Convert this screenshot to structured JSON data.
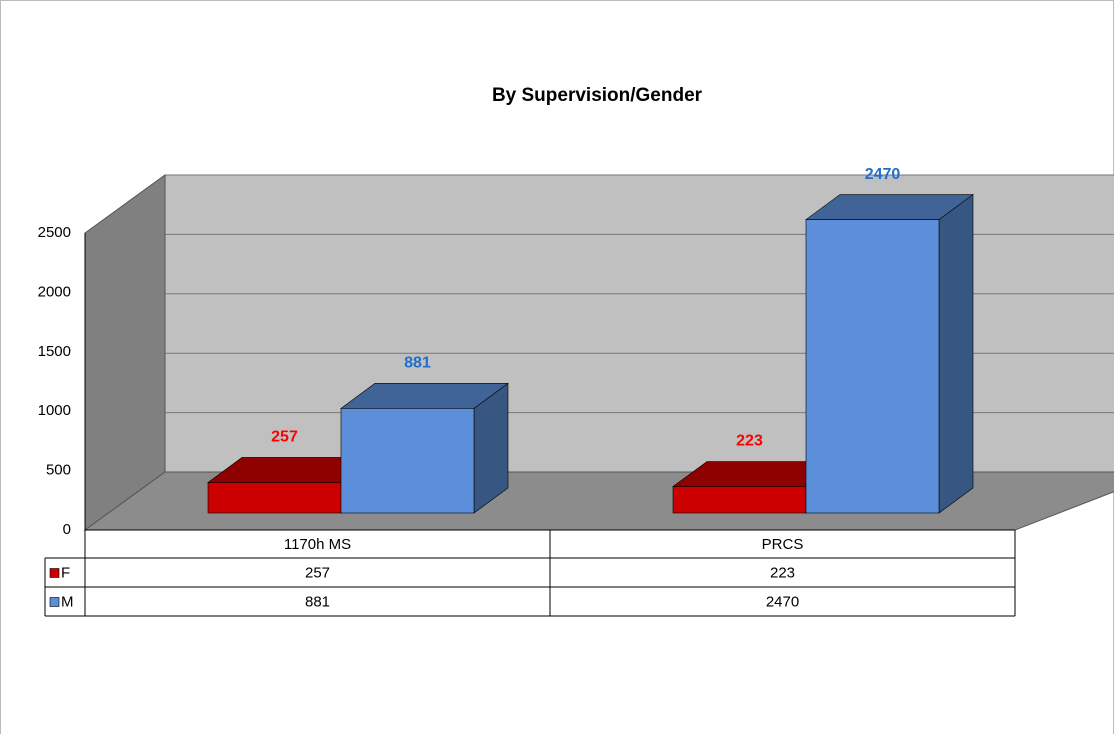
{
  "chart_data": {
    "type": "bar",
    "title": "By Supervision/Gender",
    "categories": [
      "1170h MS",
      "PRCS"
    ],
    "series": [
      {
        "name": "F",
        "color": "#cc0000",
        "label_color": "#ff0000",
        "values": [
          257,
          223
        ]
      },
      {
        "name": "M",
        "color": "#5b8fd9",
        "label_color": "#1f6fcc",
        "values": [
          881,
          2470
        ]
      }
    ],
    "ylim": [
      0,
      2500
    ],
    "yticks": [
      0,
      500,
      1000,
      1500,
      2000,
      2500
    ],
    "grid": true,
    "data_table": true
  }
}
